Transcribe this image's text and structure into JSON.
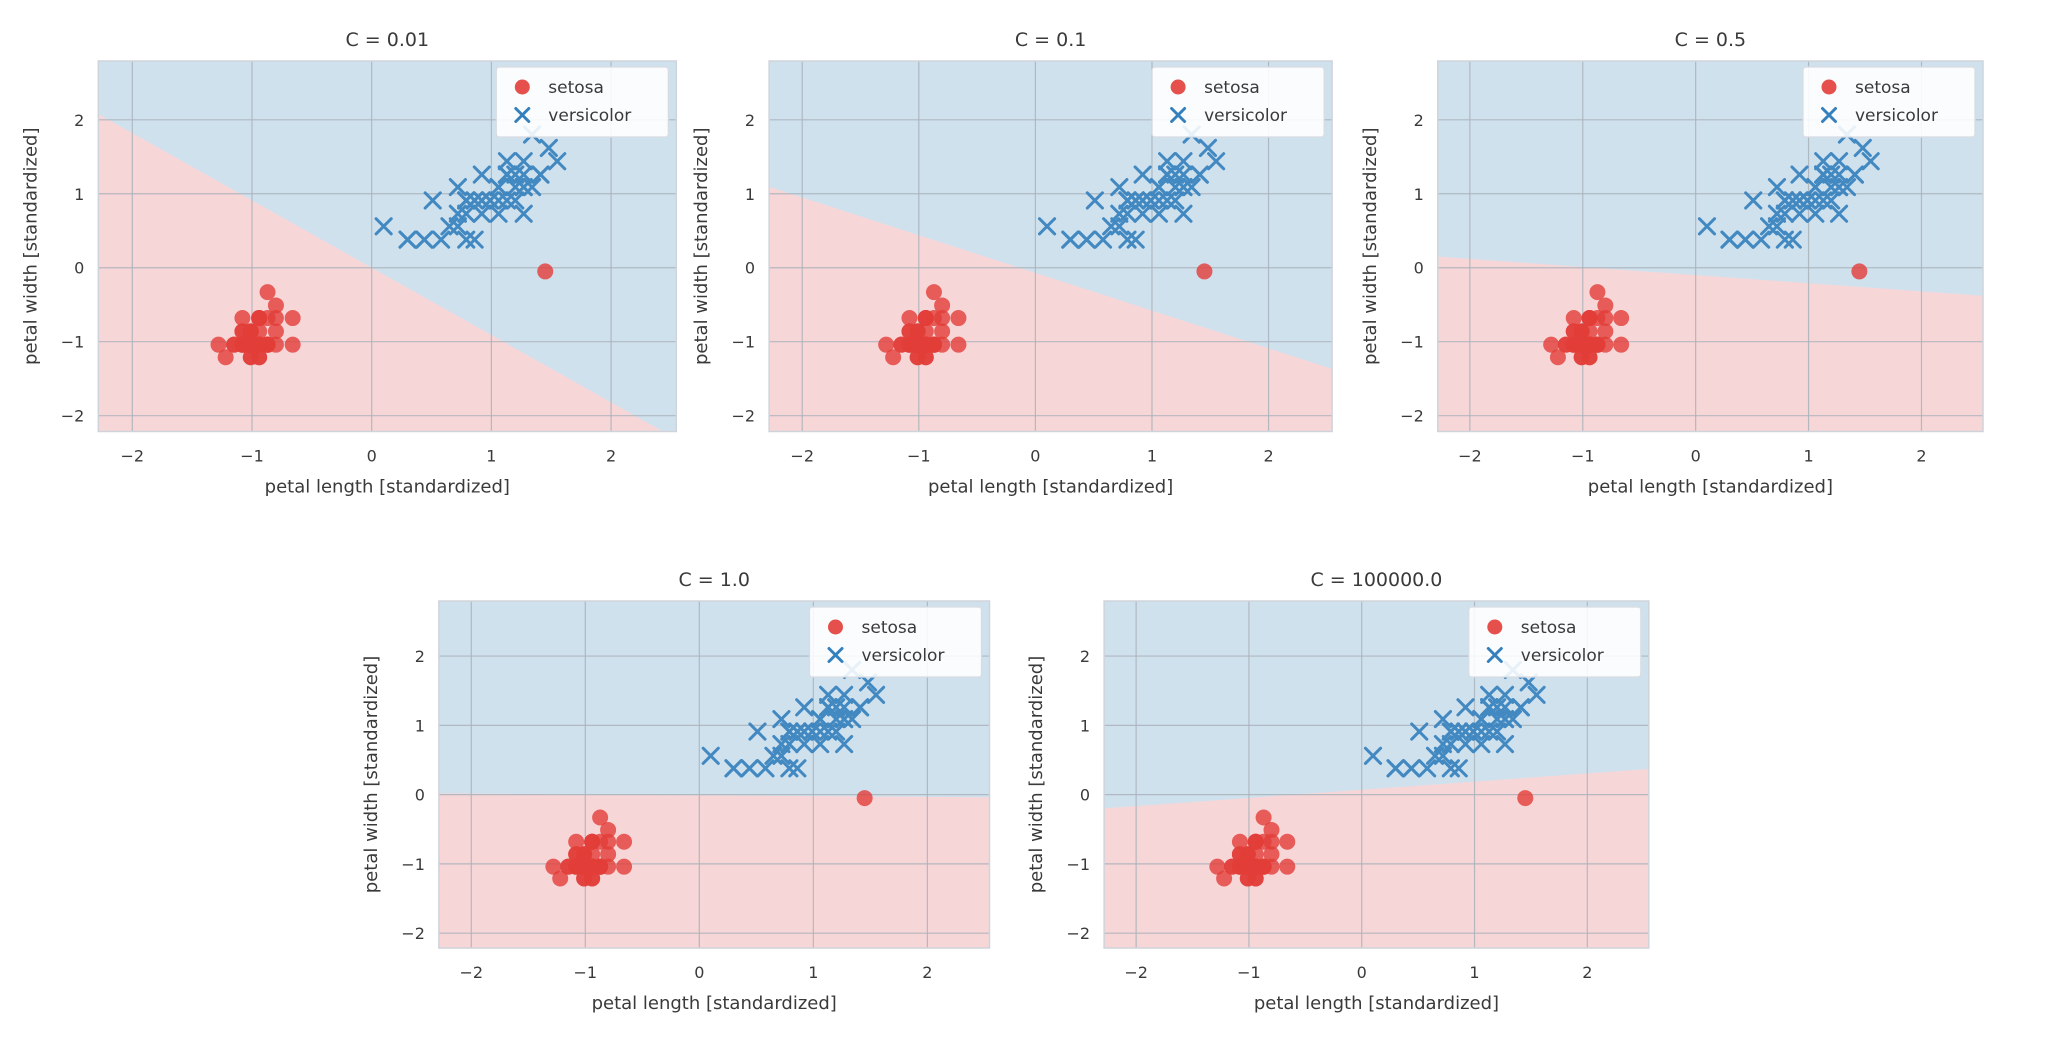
{
  "figure": {
    "description": "Five scatter plots of standardized iris petal measurements (setosa vs versicolor) with linear decision regions for different regularization values C",
    "background": "#ffffff"
  },
  "colors": {
    "region_setosa": "#f7d6d8",
    "region_versicolor": "#d0e1ee",
    "setosa_marker": "#e23d38",
    "versicolor_marker": "#3480bd",
    "grid": "#a9b1ba",
    "axes_border": "#cfd4da",
    "text": "#3a3a3a",
    "legend_bg": "#ffffff",
    "legend_border": "#d8dce2"
  },
  "chart_data": {
    "type": "scatter",
    "xlabel": "petal length [standardized]",
    "ylabel": "petal width [standardized]",
    "xlim": [
      -2.284,
      2.545
    ],
    "ylim": [
      -2.214,
      2.795
    ],
    "x_ticks": [
      -2,
      -1,
      0,
      1,
      2
    ],
    "y_ticks": [
      2,
      1,
      0,
      -1,
      -2
    ],
    "grid": true,
    "legend_position": "upper right",
    "subplots": [
      {
        "title": "C = 0.01",
        "boundary_line": {
          "slope": -0.91,
          "intercept": 0.0
        }
      },
      {
        "title": "C = 0.1",
        "boundary_line": {
          "slope": -0.51,
          "intercept": -0.07
        }
      },
      {
        "title": "C = 0.5",
        "boundary_line": {
          "slope": -0.11,
          "intercept": -0.1
        }
      },
      {
        "title": "C = 1.0",
        "boundary_line": {
          "slope": -0.012,
          "intercept": -0.01
        }
      },
      {
        "title": "C = 100000.0",
        "boundary_line": {
          "slope": 0.118,
          "intercept": 0.07
        }
      }
    ],
    "series": [
      {
        "name": "setosa",
        "marker": "circle",
        "color": "#e23d38",
        "points": [
          [
            -1.01,
            -1.04
          ],
          [
            -1.01,
            -1.04
          ],
          [
            -1.08,
            -1.04
          ],
          [
            -0.94,
            -1.04
          ],
          [
            -1.01,
            -1.04
          ],
          [
            -0.8,
            -0.68
          ],
          [
            -1.01,
            -0.86
          ],
          [
            -0.94,
            -1.04
          ],
          [
            -1.01,
            -1.04
          ],
          [
            -0.94,
            -1.21
          ],
          [
            -0.94,
            -1.04
          ],
          [
            -0.87,
            -1.04
          ],
          [
            -1.01,
            -1.21
          ],
          [
            -1.22,
            -1.21
          ],
          [
            -1.15,
            -1.04
          ],
          [
            -0.94,
            -0.68
          ],
          [
            -1.08,
            -0.68
          ],
          [
            -1.01,
            -0.86
          ],
          [
            -0.8,
            -0.86
          ],
          [
            -0.94,
            -0.86
          ],
          [
            -0.8,
            -1.04
          ],
          [
            -0.94,
            -0.68
          ],
          [
            -1.28,
            -1.04
          ],
          [
            -0.8,
            -0.51
          ],
          [
            -0.66,
            -1.04
          ],
          [
            -0.87,
            -1.04
          ],
          [
            -0.87,
            -0.68
          ],
          [
            -0.94,
            -1.04
          ],
          [
            -1.01,
            -1.04
          ],
          [
            -0.87,
            -1.04
          ],
          [
            -0.87,
            -1.04
          ],
          [
            -0.94,
            -0.68
          ],
          [
            -0.94,
            -1.21
          ],
          [
            -1.01,
            -1.04
          ],
          [
            -0.94,
            -1.04
          ],
          [
            -1.15,
            -1.04
          ],
          [
            -1.08,
            -1.04
          ],
          [
            -1.01,
            -1.21
          ],
          [
            -1.08,
            -1.04
          ],
          [
            -0.94,
            -1.04
          ],
          [
            -1.08,
            -0.86
          ],
          [
            -1.08,
            -0.86
          ],
          [
            -1.08,
            -1.04
          ],
          [
            -0.87,
            -0.33
          ],
          [
            -0.66,
            -0.68
          ],
          [
            -1.01,
            -0.86
          ],
          [
            -0.87,
            -1.04
          ],
          [
            -1.01,
            -1.04
          ],
          [
            -0.94,
            -1.04
          ],
          [
            -1.01,
            -1.04
          ],
          [
            1.45,
            -0.05
          ]
        ]
      },
      {
        "name": "versicolor",
        "marker": "x",
        "color": "#3480bd",
        "points": [
          [
            1.27,
            1.09
          ],
          [
            1.13,
            1.26
          ],
          [
            1.41,
            1.26
          ],
          [
            0.79,
            0.91
          ],
          [
            1.2,
            1.26
          ],
          [
            1.13,
            0.91
          ],
          [
            1.27,
            1.44
          ],
          [
            0.3,
            0.38
          ],
          [
            1.2,
            0.91
          ],
          [
            0.72,
            1.09
          ],
          [
            0.44,
            0.38
          ],
          [
            0.92,
            1.26
          ],
          [
            0.79,
            0.38
          ],
          [
            1.27,
            1.09
          ],
          [
            0.51,
            0.91
          ],
          [
            1.06,
            1.09
          ],
          [
            1.13,
            1.26
          ],
          [
            0.86,
            0.38
          ],
          [
            1.13,
            1.26
          ],
          [
            0.72,
            0.56
          ],
          [
            1.34,
            1.8
          ],
          [
            0.79,
            0.91
          ],
          [
            1.41,
            1.26
          ],
          [
            1.27,
            0.73
          ],
          [
            0.99,
            0.91
          ],
          [
            1.06,
            1.09
          ],
          [
            1.34,
            1.09
          ],
          [
            1.48,
            1.62
          ],
          [
            1.13,
            1.26
          ],
          [
            0.44,
            0.38
          ],
          [
            0.65,
            0.56
          ],
          [
            0.58,
            0.38
          ],
          [
            0.72,
            0.73
          ],
          [
            1.55,
            1.44
          ],
          [
            1.13,
            1.26
          ],
          [
            1.13,
            1.44
          ],
          [
            1.27,
            1.26
          ],
          [
            1.06,
            0.91
          ],
          [
            0.86,
            0.91
          ],
          [
            0.79,
            0.91
          ],
          [
            1.06,
            0.73
          ],
          [
            1.2,
            1.09
          ],
          [
            0.79,
            0.73
          ],
          [
            0.3,
            0.38
          ],
          [
            0.92,
            0.91
          ],
          [
            0.92,
            0.73
          ],
          [
            0.92,
            0.91
          ],
          [
            0.99,
            0.91
          ],
          [
            0.1,
            0.56
          ],
          [
            0.86,
            0.91
          ]
        ]
      }
    ]
  }
}
